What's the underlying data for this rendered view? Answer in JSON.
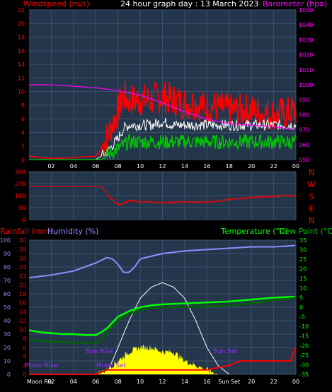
{
  "header": {
    "left": "Windspeed (m/s)",
    "center": "24 hour graph day : 13 March 2023",
    "right": "Barometer (hpa)"
  },
  "colors": {
    "background": "#000000",
    "plot_bg": "#24364c",
    "grid": "#3b516b",
    "red": "#ff0000",
    "magenta": "#ff00ff",
    "green": "#00c800",
    "dark_green": "#006400",
    "white": "#ffffff",
    "lavender": "#8f8fff",
    "yellow": "#ffff00",
    "bright_green": "#00ff00"
  },
  "middle": {
    "compass": [
      "N",
      "W",
      "S",
      "E",
      "N"
    ]
  },
  "bottom": {
    "left_label_1": "Rainfall (mm)",
    "left_label_2": "Humidity (%)",
    "right_label_1": "Temperature (°C)",
    "right_label_2": "Dew Point (°C)",
    "annotations": {
      "moon_rise": "Moon Rise",
      "sun_rise": "Sun Rise",
      "moon_set": "Moon Set",
      "sun_set": "Sun Set"
    },
    "bottom_row": [
      "Moon Ris",
      "02",
      "04",
      "06",
      "08",
      "10",
      "12",
      "14",
      "16",
      "Sun Set",
      "20",
      "22",
      "00"
    ]
  },
  "chart_data": [
    {
      "type": "line",
      "title": "24 hour graph day : 13 March 2023",
      "x_ticks": [
        "02",
        "04",
        "06",
        "08",
        "10",
        "12",
        "14",
        "16",
        "18",
        "20",
        "22",
        "00"
      ],
      "y_left_label": "Windspeed (m/s)",
      "y_left_ticks": [
        0,
        2,
        4,
        6,
        8,
        10,
        12,
        14,
        16,
        18,
        20,
        22
      ],
      "y_left_lim": [
        0,
        22
      ],
      "y_right_label": "Barometer (hpa)",
      "y_right_ticks": [
        950,
        960,
        970,
        980,
        990,
        1000,
        1010,
        1020,
        1030,
        1040,
        1050
      ],
      "y_right_lim": [
        950,
        1050
      ],
      "series": [
        {
          "role": "wind gust (red)",
          "hours": [
            0,
            1,
            2,
            3,
            4,
            5,
            6,
            6.5,
            7,
            7.5,
            8,
            8.5,
            9,
            10,
            11,
            12,
            13,
            14,
            15,
            16,
            17,
            18,
            19,
            20,
            21,
            22,
            23,
            24
          ],
          "values": [
            0.5,
            0.3,
            0.2,
            0.2,
            0.3,
            0.4,
            0.5,
            1.5,
            3,
            5,
            7,
            9,
            8.5,
            8.5,
            8.5,
            9,
            8.5,
            8,
            8,
            7.5,
            7.5,
            7,
            7,
            7,
            6.5,
            6.5,
            6.5,
            7
          ]
        },
        {
          "role": "wind average (white)",
          "hours": [
            0,
            1,
            2,
            3,
            4,
            5,
            6,
            6.5,
            7,
            7.5,
            8,
            8.5,
            9,
            10,
            11,
            12,
            13,
            14,
            15,
            16,
            17,
            18,
            19,
            20,
            21,
            22,
            23,
            24
          ],
          "values": [
            0,
            0,
            0,
            0,
            0,
            0,
            0,
            0.5,
            1,
            2,
            3,
            4.5,
            5,
            5,
            5,
            5.5,
            5,
            5,
            5,
            5,
            5,
            5,
            5,
            5,
            5,
            5,
            5,
            5
          ]
        },
        {
          "role": "wind speed (green)",
          "hours": [
            0,
            1,
            2,
            3,
            4,
            5,
            6,
            6.5,
            7,
            7.5,
            8,
            8.5,
            9,
            10,
            11,
            12,
            13,
            14,
            15,
            16,
            17,
            18,
            19,
            20,
            21,
            22,
            23,
            24
          ],
          "values": [
            0,
            0,
            0,
            0,
            0,
            0,
            0,
            0,
            0.5,
            1,
            1.5,
            2,
            2.5,
            2.5,
            2.5,
            2.5,
            2.5,
            2.5,
            2.5,
            2.5,
            2.5,
            2.5,
            2.5,
            2.5,
            2.5,
            2.5,
            2.5,
            2.5
          ]
        },
        {
          "role": "barometer (magenta)",
          "axis": "right",
          "hours": [
            0,
            2,
            4,
            6,
            8,
            10,
            12,
            14,
            16,
            18,
            20,
            22,
            24
          ],
          "values": [
            1000,
            1000,
            999,
            998,
            996,
            993,
            988,
            982,
            977,
            974,
            973,
            972,
            970
          ]
        }
      ]
    },
    {
      "type": "line",
      "y_left_ticks": [
        0,
        90,
        180,
        270,
        360
      ],
      "y_left_lim": [
        0,
        360
      ],
      "y_right_labels": [
        "N",
        "W",
        "S",
        "E",
        "N"
      ],
      "series": [
        {
          "role": "wind direction (red)",
          "hours": [
            0,
            1,
            2,
            3,
            4,
            5,
            6,
            6.5,
            7,
            8,
            9,
            10,
            11,
            12,
            13,
            14,
            15,
            16,
            17,
            18,
            19,
            20,
            21,
            22,
            23,
            24
          ],
          "values": [
            250,
            250,
            250,
            250,
            250,
            250,
            250,
            250,
            190,
            110,
            140,
            135,
            130,
            128,
            130,
            132,
            130,
            132,
            140,
            150,
            160,
            165,
            170,
            175,
            178,
            180
          ]
        }
      ]
    },
    {
      "type": "line",
      "y_left_outer_ticks": [
        0,
        10,
        20,
        30,
        40,
        50,
        60,
        70,
        80,
        90,
        100
      ],
      "y_left_outer_lim": [
        0,
        100
      ],
      "y_left_inner_ticks": [
        0,
        2,
        4,
        6,
        8,
        10,
        12,
        14,
        16,
        18,
        20,
        22,
        24,
        26,
        28,
        30
      ],
      "y_left_inner_lim": [
        0,
        30
      ],
      "y_right_ticks": [
        -35,
        -30,
        -25,
        -20,
        -15,
        -10,
        -5,
        0,
        5,
        10,
        15,
        20,
        25,
        30,
        35
      ],
      "y_right_lim": [
        -35,
        35
      ],
      "series": [
        {
          "name": "Humidity (%)",
          "axis": "left_outer",
          "hours": [
            0,
            2,
            4,
            5,
            6,
            6.5,
            7,
            7.5,
            8,
            8.5,
            9,
            9.5,
            10,
            11,
            12,
            13,
            14,
            16,
            18,
            20,
            22,
            24
          ],
          "values": [
            72,
            74,
            77,
            80,
            83,
            85,
            87,
            86,
            82,
            76,
            76,
            80,
            86,
            88,
            90,
            91,
            92,
            93,
            94,
            95,
            95,
            96
          ]
        },
        {
          "name": "Temperature (°C)",
          "axis": "right",
          "hours": [
            0,
            1,
            2,
            3,
            4,
            5,
            6,
            6.5,
            7,
            8,
            9,
            10,
            11,
            12,
            14,
            16,
            18,
            20,
            22,
            24
          ],
          "values": [
            -12,
            -13,
            -13.5,
            -14,
            -14,
            -14.5,
            -14.5,
            -13,
            -11,
            -5,
            -2,
            0,
            1,
            1.5,
            2,
            2.5,
            3,
            4,
            5,
            5.5
          ]
        },
        {
          "name": "Dew Point (°C)",
          "axis": "right",
          "hours": [
            0,
            1,
            2,
            3,
            4,
            5,
            6,
            6.5,
            7,
            8,
            9,
            10,
            11,
            12,
            14,
            16,
            18,
            20,
            22,
            24
          ],
          "values": [
            -17,
            -17.5,
            -18,
            -18,
            -18.5,
            -18.5,
            -18.5,
            -17,
            -13,
            -7,
            -3.5,
            -1.5,
            -0.5,
            0,
            0,
            0.5,
            1,
            2,
            3.5,
            5
          ]
        },
        {
          "role": "rainfall (red)",
          "axis": "left_inner",
          "hours": [
            0,
            6,
            6.5,
            7,
            8,
            16,
            17,
            18,
            19,
            20,
            21,
            22,
            23,
            23.5,
            24
          ],
          "values": [
            0,
            0,
            0.5,
            1,
            1,
            1,
            1.5,
            2,
            3,
            3,
            3,
            3,
            3,
            3,
            6
          ]
        },
        {
          "role": "solar (yellow)",
          "axis": "left_inner",
          "hours": [
            0,
            6,
            7,
            7.5,
            8,
            9,
            10,
            11,
            12,
            13,
            14,
            15,
            16,
            17,
            18,
            24
          ],
          "values": [
            0,
            0,
            1,
            2,
            3,
            5,
            6,
            6,
            5,
            5,
            3,
            2,
            1,
            0,
            0,
            0
          ]
        },
        {
          "role": "solar maximum (white)",
          "axis": "left_inner",
          "hours": [
            7,
            8,
            9,
            10,
            11,
            12,
            13,
            14,
            15,
            16,
            17,
            18
          ],
          "values": [
            0,
            6,
            12,
            17,
            19.5,
            20.5,
            19.5,
            17,
            12,
            6,
            2,
            0
          ]
        }
      ]
    }
  ]
}
